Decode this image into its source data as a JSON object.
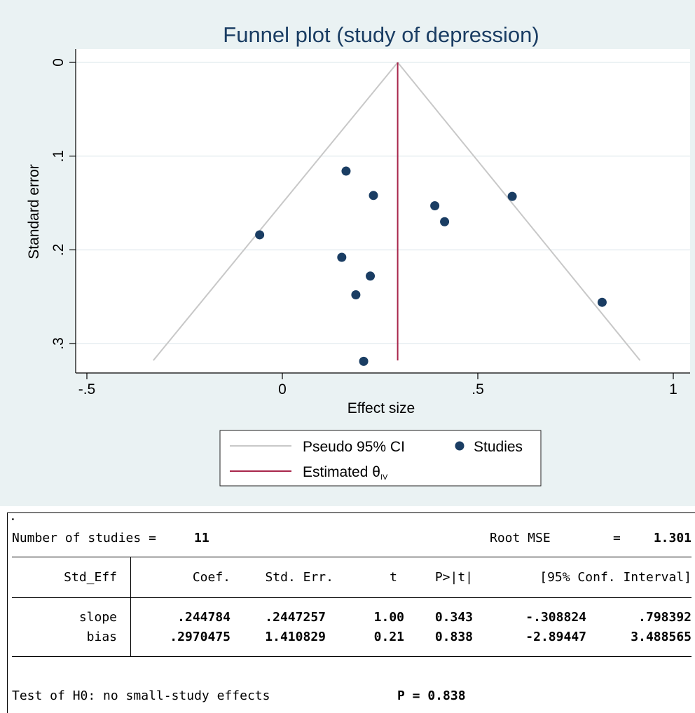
{
  "chart_data": {
    "type": "scatter",
    "title": "Funnel plot (study of depression)",
    "xlabel": "Effect size",
    "ylabel": "Standard error",
    "xlim": [
      -0.5,
      1
    ],
    "ylim": [
      0,
      0.3
    ],
    "y_reversed": true,
    "x_ticks": [
      -0.5,
      0,
      0.5,
      1
    ],
    "x_tick_labels": [
      "-.5",
      "0",
      ".5",
      "1"
    ],
    "y_ticks": [
      0,
      0.1,
      0.2,
      0.3
    ],
    "y_tick_labels": [
      "0",
      ".1",
      ".2",
      ".3"
    ],
    "grid": true,
    "legend_position": "bottom",
    "estimate": 0.295,
    "ci_apex": {
      "x": 0.295,
      "se": 0
    },
    "ci_base": {
      "left_x": -0.33,
      "right_x": 0.915,
      "se": 0.318
    },
    "series": [
      {
        "name": "Studies",
        "points": [
          {
            "x": 0.163,
            "y": 0.116
          },
          {
            "x": 0.233,
            "y": 0.142
          },
          {
            "x": 0.39,
            "y": 0.153
          },
          {
            "x": 0.415,
            "y": 0.17
          },
          {
            "x": 0.588,
            "y": 0.143
          },
          {
            "x": -0.058,
            "y": 0.184
          },
          {
            "x": 0.152,
            "y": 0.208
          },
          {
            "x": 0.225,
            "y": 0.228
          },
          {
            "x": 0.188,
            "y": 0.248
          },
          {
            "x": 0.818,
            "y": 0.256
          },
          {
            "x": 0.208,
            "y": 0.319
          }
        ]
      }
    ],
    "colors": {
      "ci": "#c8c8c8",
      "estimate": "#a8264b",
      "points": "#1a3d63",
      "background": "#eaf2f3"
    }
  },
  "legend": {
    "ci_label": "Pseudo 95% CI",
    "studies_label": "Studies",
    "estimate_label": "Estimated θ",
    "estimate_sub": "IV"
  },
  "regression": {
    "dot": ".",
    "n_label": "Number of studies =",
    "n_value": "11",
    "rmse_label": "Root MSE",
    "rmse_eq": "=",
    "rmse_value": "1.301",
    "headers": [
      "Std_Eff",
      "Coef.",
      "Std. Err.",
      "t",
      "P>|t|",
      "[95% Conf. Interval]"
    ],
    "rows": [
      [
        "slope",
        ".244784",
        ".2447257",
        "1.00",
        "0.343",
        "-.308824",
        ".798392"
      ],
      [
        "bias",
        ".2970475",
        "1.410829",
        "0.21",
        "0.838",
        "-2.89447",
        "3.488565"
      ]
    ],
    "test_label": "Test of H0: no small-study effects",
    "test_p": "P = 0.838"
  }
}
